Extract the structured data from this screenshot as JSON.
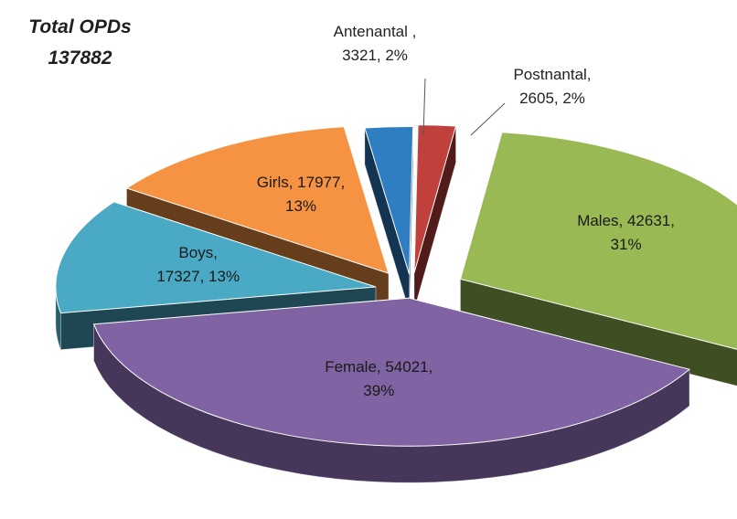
{
  "chart_data": {
    "type": "pie",
    "title": "Total OPDs",
    "subtitle": "137882",
    "style": "3d-exploded",
    "slices": [
      {
        "key": "antenantal",
        "label": "Antenantal ,",
        "value": 3321,
        "value_text": "3321",
        "percent_text": "2%",
        "color": "#2e7ec1"
      },
      {
        "key": "postnantal",
        "label": "Postnantal,",
        "value": 2605,
        "value_text": "2605",
        "percent_text": "2%",
        "color": "#c0403c"
      },
      {
        "key": "males",
        "label": "Males,",
        "value": 42631,
        "value_text": "42631",
        "percent_text": "31%",
        "color": "#98b954"
      },
      {
        "key": "female",
        "label": "Female,",
        "value": 54021,
        "value_text": "54021",
        "percent_text": "39%",
        "color": "#7f63a2"
      },
      {
        "key": "boys",
        "label": "Boys,",
        "value": 17327,
        "value_text": "17327",
        "percent_text": "13%",
        "color": "#4aaac5"
      },
      {
        "key": "girls",
        "label": "Girls,",
        "value": 17977,
        "value_text": "17977",
        "percent_text": "13%",
        "color": "#f59342"
      }
    ]
  }
}
